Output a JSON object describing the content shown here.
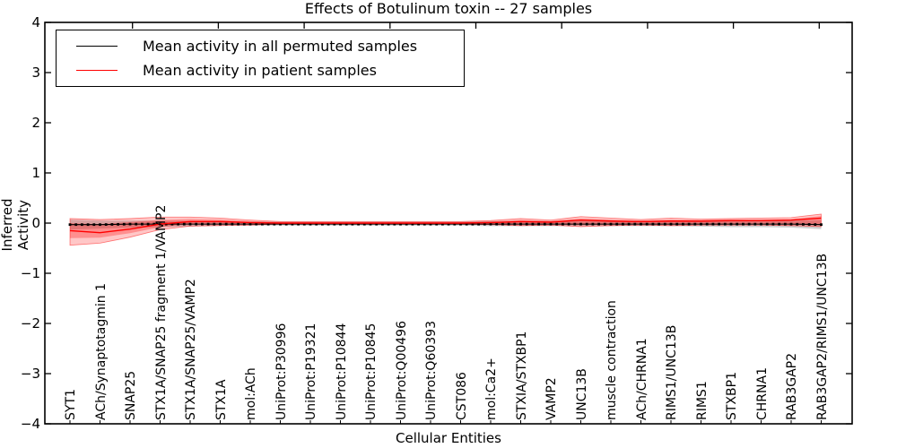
{
  "figure": {
    "title": "Effects of Botulinum toxin -- 27 samples",
    "xlabel": "Cellular Entities",
    "ylabel": "Inferred Activity"
  },
  "chart_data": {
    "type": "line",
    "title": "Effects of Botulinum toxin -- 27 samples",
    "xlabel": "Cellular Entities",
    "ylabel": "Inferred Activity",
    "ylim": [
      -4,
      4
    ],
    "yticks": [
      -4,
      -3,
      -2,
      -1,
      0,
      1,
      2,
      3,
      4
    ],
    "grid": false,
    "legend_position": "upper left",
    "categories": [
      "SYT1",
      "ACh/Synaptotagmin 1",
      "SNAP25",
      "STX1A/SNAP25 fragment 1/VAMP2",
      "STX1A/SNAP25/VAMP2",
      "STX1A",
      "mol:ACh",
      "UniProt:P30996",
      "UniProt:P19321",
      "UniProt:P10844",
      "UniProt:P10845",
      "UniProt:Q00496",
      "UniProt:Q60393",
      "CST086",
      "mol:Ca2+",
      "STXIA/STXBP1",
      "VAMP2",
      "UNC13B",
      "muscle contraction",
      "ACh/CHRNA1",
      "RIMS1/UNC13B",
      "RIMS1",
      "STXBP1",
      "CHRNA1",
      "RAB3GAP2",
      "RAB3GAP2/RIMS1/UNC13B"
    ],
    "series": [
      {
        "name": "Mean activity in all permuted samples",
        "color": "#000000",
        "marker": "square",
        "values": [
          -0.03,
          -0.03,
          -0.02,
          -0.02,
          -0.02,
          -0.02,
          -0.02,
          -0.02,
          -0.02,
          -0.02,
          -0.02,
          -0.02,
          -0.02,
          -0.02,
          -0.02,
          -0.02,
          -0.02,
          -0.02,
          -0.02,
          -0.02,
          -0.02,
          -0.02,
          -0.02,
          -0.02,
          -0.02,
          -0.03
        ]
      },
      {
        "name": "Mean activity in patient samples",
        "color": "#ff0000",
        "marker": "none",
        "values": [
          -0.15,
          -0.19,
          -0.12,
          -0.02,
          0.03,
          0.03,
          0.01,
          0.0,
          0.0,
          0.0,
          0.0,
          0.0,
          0.0,
          0.0,
          0.01,
          0.03,
          0.02,
          0.06,
          0.04,
          0.03,
          0.04,
          0.04,
          0.05,
          0.05,
          0.06,
          0.1
        ]
      }
    ],
    "bands": [
      {
        "name": "permuted-std-band",
        "color": "#888888",
        "opacity": 0.4,
        "upper": [
          0.07,
          0.05,
          0.05,
          0.05,
          0.04,
          0.03,
          0.03,
          0.03,
          0.03,
          0.03,
          0.03,
          0.03,
          0.03,
          0.03,
          0.04,
          0.04,
          0.04,
          0.04,
          0.04,
          0.04,
          0.04,
          0.04,
          0.04,
          0.04,
          0.05,
          0.06
        ],
        "lower": [
          -0.13,
          -0.11,
          -0.09,
          -0.08,
          -0.07,
          -0.05,
          -0.05,
          -0.05,
          -0.05,
          -0.05,
          -0.05,
          -0.05,
          -0.05,
          -0.05,
          -0.06,
          -0.06,
          -0.06,
          -0.06,
          -0.06,
          -0.06,
          -0.06,
          -0.07,
          -0.08,
          -0.08,
          -0.09,
          -0.12
        ]
      },
      {
        "name": "patient-std-band-outer",
        "color": "#ff0000",
        "opacity": 0.22,
        "upper": [
          0.09,
          0.07,
          0.09,
          0.12,
          0.12,
          0.1,
          0.06,
          0.03,
          0.03,
          0.03,
          0.03,
          0.03,
          0.03,
          0.03,
          0.05,
          0.09,
          0.06,
          0.13,
          0.1,
          0.07,
          0.1,
          0.08,
          0.09,
          0.1,
          0.11,
          0.18
        ],
        "lower": [
          -0.44,
          -0.4,
          -0.28,
          -0.13,
          -0.06,
          -0.05,
          -0.04,
          -0.02,
          -0.02,
          -0.02,
          -0.02,
          -0.02,
          -0.02,
          -0.02,
          -0.03,
          -0.05,
          -0.04,
          -0.07,
          -0.05,
          -0.04,
          -0.05,
          -0.04,
          -0.04,
          -0.04,
          -0.05,
          -0.07
        ],
        "edge": true
      },
      {
        "name": "patient-std-band-inner",
        "color": "#ff0000",
        "opacity": 0.28,
        "upper": [
          0.0,
          -0.02,
          0.02,
          0.06,
          0.08,
          0.07,
          0.04,
          0.015,
          0.015,
          0.015,
          0.015,
          0.015,
          0.015,
          0.015,
          0.03,
          0.06,
          0.04,
          0.09,
          0.07,
          0.05,
          0.07,
          0.06,
          0.07,
          0.07,
          0.08,
          0.14
        ],
        "lower": [
          -0.3,
          -0.29,
          -0.2,
          -0.08,
          -0.02,
          -0.01,
          -0.01,
          -0.01,
          -0.01,
          -0.01,
          -0.01,
          -0.01,
          -0.01,
          -0.01,
          -0.02,
          -0.03,
          -0.02,
          -0.04,
          -0.03,
          -0.02,
          -0.03,
          -0.02,
          -0.02,
          -0.02,
          -0.03,
          -0.04
        ],
        "edge": false
      }
    ],
    "markers_per_category_interval": 5
  }
}
